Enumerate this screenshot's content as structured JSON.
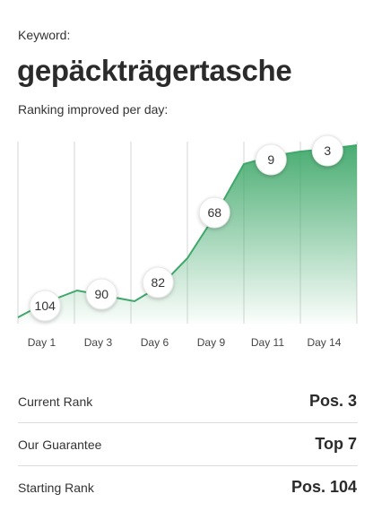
{
  "keyword": {
    "label": "Keyword:",
    "value": "gepäckträgertasche"
  },
  "chart": {
    "subtitle": "Ranking improved per day:"
  },
  "chart_data": {
    "type": "area",
    "x_tick_labels": [
      "Day 1",
      "Day 3",
      "Day 6",
      "Day 9",
      "Day 11",
      "Day 14"
    ],
    "y_axis": "rank position (lower is better, drawn higher)",
    "line_color": "#3fa86a",
    "fill_color_top": "#3fa86a",
    "points": [
      {
        "x": 1,
        "rank": 104,
        "label": "104"
      },
      {
        "x": 3,
        "rank": 90,
        "label": "90"
      },
      {
        "x": 6,
        "rank": 82,
        "label": "82"
      },
      {
        "x": 9,
        "rank": 68,
        "label": "68"
      },
      {
        "x": 11,
        "rank": 9,
        "label": "9"
      },
      {
        "x": 14,
        "rank": 3,
        "label": "3"
      }
    ]
  },
  "stats": [
    {
      "label": "Current Rank",
      "value": "Pos. 3"
    },
    {
      "label": "Our Guarantee",
      "value": "Top 7"
    },
    {
      "label": "Starting Rank",
      "value": "Pos. 104"
    }
  ]
}
